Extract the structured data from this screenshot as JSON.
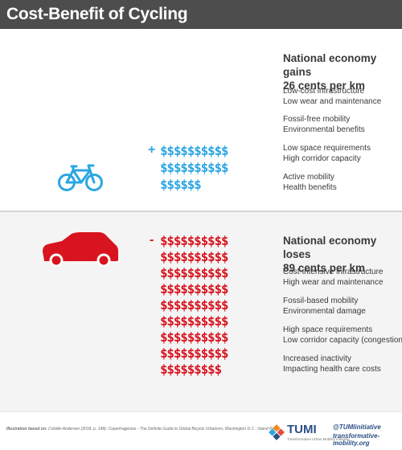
{
  "title": "Cost-Benefit of Cycling",
  "colors": {
    "header_bg": "#4d4d4d",
    "cycling_blue": "#2ba6e1",
    "car_red": "#d7141f",
    "text_dark": "#3a3a3a",
    "tumi_blue": "#2b4f86"
  },
  "icons": {
    "bicycle": "bicycle-icon",
    "car": "car-icon",
    "tumi": "tumi-logo-icon"
  },
  "gains": {
    "heading_1": "National economy gains",
    "heading_2": "26 cents per km",
    "sign": "+",
    "dollar_count": 26,
    "dollar_rows": [
      "$$$$$$$$$$",
      "$$$$$$$$$$",
      "$$$$$$"
    ],
    "items": [
      {
        "line1": "Low-cost infrastructure",
        "line2": "Low wear and maintenance"
      },
      {
        "line1": "Fossil-free mobility",
        "line2": "Environmental benefits"
      },
      {
        "line1": "Low space requirements",
        "line2": "High corridor capacity"
      },
      {
        "line1": "Active mobility",
        "line2": "Health benefits"
      }
    ]
  },
  "losses": {
    "heading_1": "National economy loses",
    "heading_2": "89 cents per km",
    "sign": "-",
    "dollar_count": 89,
    "dollar_rows": [
      "$$$$$$$$$$",
      "$$$$$$$$$$",
      "$$$$$$$$$$",
      "$$$$$$$$$$",
      "$$$$$$$$$$",
      "$$$$$$$$$$",
      "$$$$$$$$$$",
      "$$$$$$$$$$",
      "$$$$$$$$$"
    ],
    "items": [
      {
        "line1": "Cost-intensive infrastructure",
        "line2": "High wear and maintenance"
      },
      {
        "line1": "Fossil-based mobility",
        "line2": "Environmental damage"
      },
      {
        "line1": "High space requirements",
        "line2": "Low corridor capacity (congestion)"
      },
      {
        "line1": "Increased inactivity",
        "line2": "Impacting health care costs"
      }
    ]
  },
  "footer": {
    "source_label": "Illustration based on:",
    "source_text": "Colville-Andersen (2018, p. 148): Copenhagenize - The Definite Guide to Global Bicycle Urbanism, Washington D.C.: Island Press.",
    "tumi_name": "TUMI",
    "tumi_sub": "Transformative Urban Mobility Initiative",
    "handle": "@TUMIinitiative",
    "website": "transformative-mobility.org"
  }
}
